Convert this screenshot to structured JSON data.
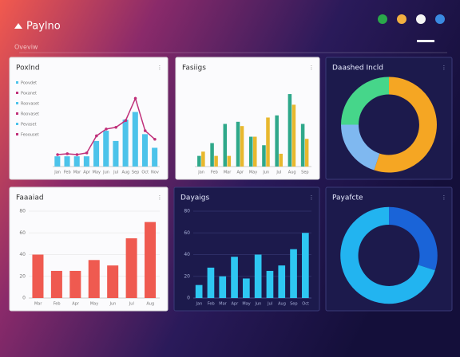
{
  "header": {
    "title": "Paylno",
    "subtitle": "Oveviw"
  },
  "chart_data": [
    {
      "type": "combo",
      "title": "Poxlnd",
      "theme": "light",
      "legend": [
        "Poovdet",
        "Poxanet",
        "Roovaset",
        "Roovaset",
        "Pevaset",
        "Feoouset"
      ],
      "categories": [
        "Jan",
        "Feb",
        "Mar",
        "Apr",
        "May",
        "Jun",
        "Jul",
        "Aug",
        "Sep",
        "Oct",
        "Nov"
      ],
      "series": [
        {
          "kind": "bar",
          "color": "#4cc3ea",
          "values": [
            12,
            12,
            12,
            12,
            30,
            42,
            30,
            55,
            64,
            38,
            22
          ]
        },
        {
          "kind": "line",
          "color": "#c0307a",
          "values": [
            14,
            15,
            14,
            16,
            36,
            44,
            46,
            54,
            80,
            42,
            32
          ]
        }
      ],
      "ylim": [
        0,
        100
      ]
    },
    {
      "type": "bar",
      "title": "Fasiigs",
      "theme": "light",
      "categories": [
        "Jan",
        "Feb",
        "Mar",
        "Apr",
        "May",
        "Jun",
        "Jul",
        "Aug",
        "Sep"
      ],
      "series": [
        {
          "kind": "bar",
          "color": "#2fa88a",
          "values": [
            10,
            22,
            40,
            42,
            28,
            20,
            48,
            68,
            40
          ]
        },
        {
          "kind": "bar",
          "color": "#e8b82e",
          "values": [
            14,
            10,
            10,
            38,
            28,
            46,
            12,
            58,
            26
          ]
        }
      ],
      "ylim": [
        0,
        80
      ]
    },
    {
      "type": "donut",
      "title": "Daashed Incld",
      "theme": "dark",
      "values": [
        55,
        20,
        25
      ],
      "colors": [
        "#f5a623",
        "#7fb8f0",
        "#46d68a"
      ]
    },
    {
      "type": "bar",
      "title": "Faaaiad",
      "theme": "light",
      "categories": [
        "Mar",
        "Feb",
        "Apr",
        "May",
        "Jun",
        "Jul",
        "Aug"
      ],
      "series": [
        {
          "kind": "bar",
          "color": "#ef5a50",
          "values": [
            40,
            25,
            25,
            35,
            30,
            55,
            70
          ]
        }
      ],
      "ylim": [
        0,
        80
      ],
      "yticks": [
        0,
        20,
        40,
        60,
        80
      ]
    },
    {
      "type": "bar",
      "title": "Dayaigs",
      "theme": "dark",
      "categories": [
        "Jan",
        "Feb",
        "Mar",
        "Apr",
        "May",
        "Jun",
        "Jul",
        "Aug",
        "Sep",
        "Oct"
      ],
      "series": [
        {
          "kind": "bar",
          "color": "#2ec7f2",
          "values": [
            12,
            28,
            20,
            38,
            18,
            40,
            25,
            30,
            45,
            60
          ]
        }
      ],
      "ylim": [
        0,
        80
      ],
      "yticks": [
        0,
        20,
        40,
        60,
        80
      ]
    },
    {
      "type": "donut",
      "title": "Payafcte",
      "theme": "dark",
      "values": [
        30,
        70
      ],
      "colors": [
        "#1a64d8",
        "#22b4f0"
      ]
    }
  ]
}
